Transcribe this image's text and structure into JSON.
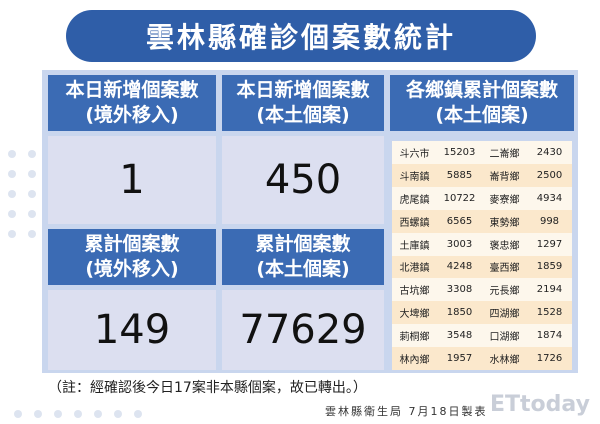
{
  "title": "雲林縣確診個案數統計",
  "headers": {
    "today_imported": [
      "本日新增個案數",
      "(境外移入)"
    ],
    "today_local": [
      "本日新增個案數",
      "(本土個案)"
    ],
    "township": [
      "各鄉鎮累計個案數",
      "(本土個案)"
    ],
    "total_imported": [
      "累計個案數",
      "(境外移入)"
    ],
    "total_local": [
      "累計個案數",
      "(本土個案)"
    ]
  },
  "values": {
    "today_imported": "1",
    "today_local": "450",
    "total_imported": "149",
    "total_local": "77629"
  },
  "townships": [
    [
      "斗六市",
      "15203",
      "二崙鄉",
      "2430"
    ],
    [
      "斗南鎮",
      "5885",
      "崙背鄉",
      "2500"
    ],
    [
      "虎尾鎮",
      "10722",
      "麥寮鄉",
      "4934"
    ],
    [
      "西螺鎮",
      "6565",
      "東勢鄉",
      "998"
    ],
    [
      "土庫鎮",
      "3003",
      "褒忠鄉",
      "1297"
    ],
    [
      "北港鎮",
      "4248",
      "臺西鄉",
      "1859"
    ],
    [
      "古坑鄉",
      "3308",
      "元長鄉",
      "2194"
    ],
    [
      "大埤鄉",
      "1850",
      "四湖鄉",
      "1528"
    ],
    [
      "莿桐鄉",
      "3548",
      "口湖鄉",
      "1874"
    ],
    [
      "林內鄉",
      "1957",
      "水林鄉",
      "1726"
    ]
  ],
  "note": "（註：經確認後今日17案非本縣個案，故已轉出。）",
  "footer": "雲林縣衛生局 7月18日製表",
  "watermark": "ETtoday新聞雲",
  "colors": {
    "title": "#2f5ea8",
    "header": "#3b6bb4",
    "number_bg": "#dcdff0",
    "panel": "#c9d6ee"
  }
}
